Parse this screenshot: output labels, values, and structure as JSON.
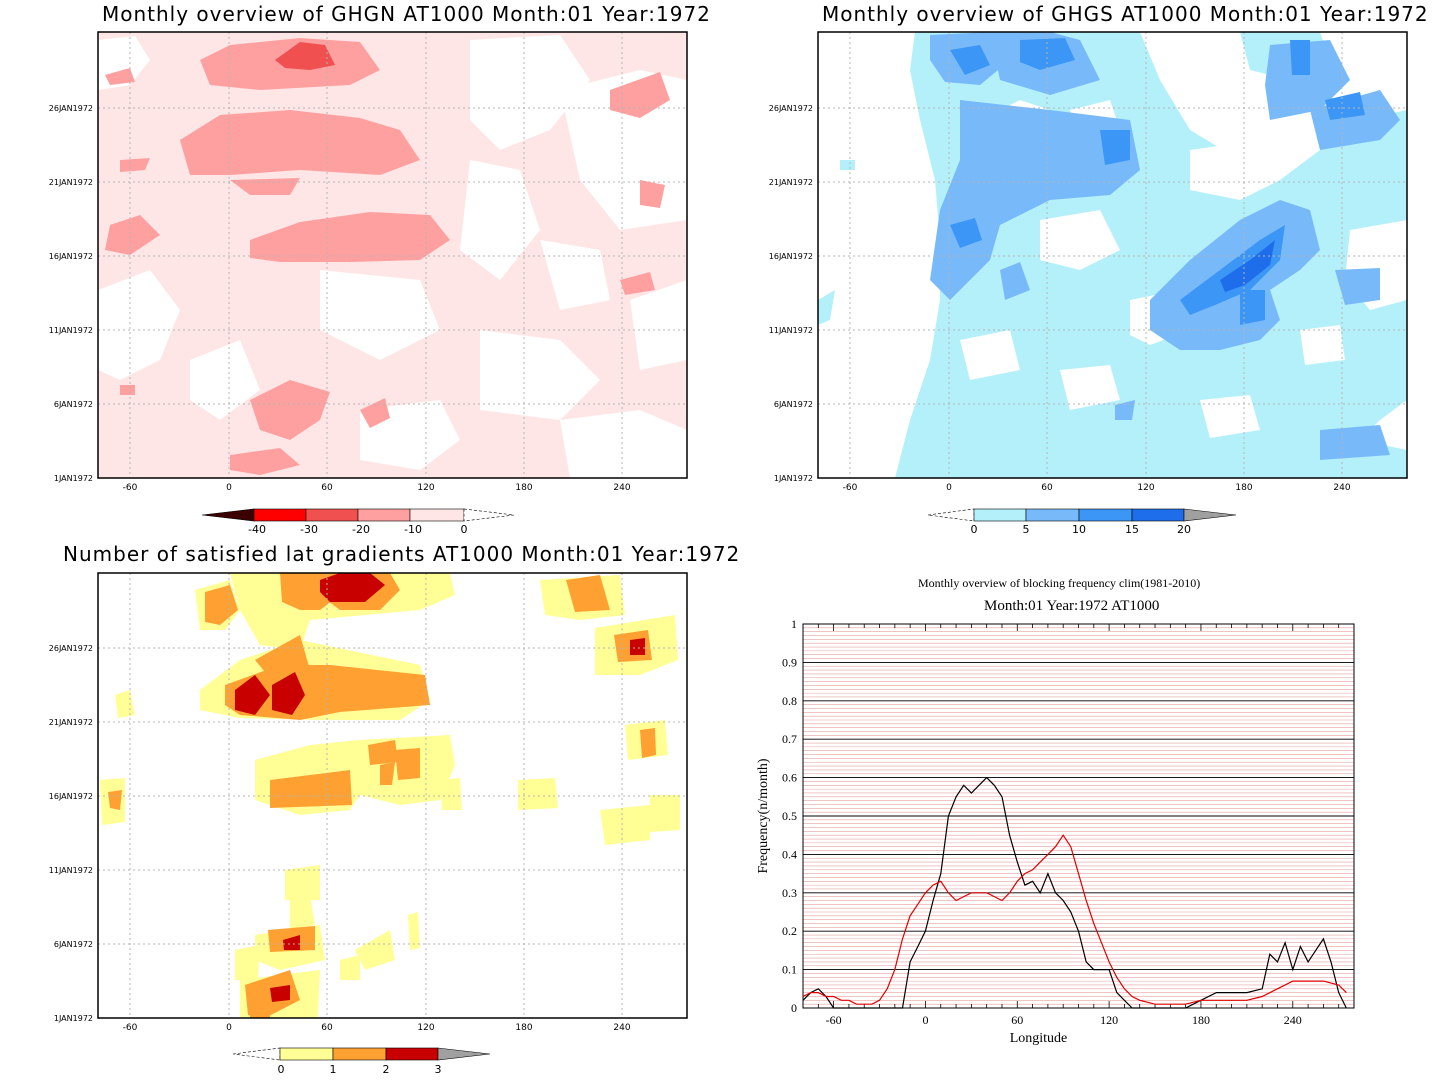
{
  "panels": {
    "ghgn": {
      "title": "Monthly overview of GHGN AT1000 Month:01 Year:1972",
      "colorbar_labels": [
        "-40",
        "-30",
        "-20",
        "-10",
        "0"
      ],
      "colors": [
        "#3c0000",
        "#ff0000",
        "#f05050",
        "#ffa0a0",
        "#ffe6e6",
        "#ffffff"
      ]
    },
    "ghgs": {
      "title": "Monthly overview of GHGS AT1000 Month:01 Year:1972",
      "colorbar_labels": [
        "0",
        "5",
        "10",
        "15",
        "20"
      ],
      "colors": [
        "#ffffff",
        "#b4f0fa",
        "#78b9fa",
        "#3c96f5",
        "#1e6eeb",
        "#a0a0a0"
      ]
    },
    "gradients": {
      "title": "Number of satisfied lat gradients AT1000 Month:01 Year:1972",
      "colorbar_labels": [
        "0",
        "1",
        "2",
        "3"
      ],
      "colors": [
        "#ffffff",
        "#ffff96",
        "#ffa032",
        "#c80000",
        "#a0a0a0"
      ]
    },
    "blocking": {
      "title": "Monthly overview of blocking frequency clim(1981-2010)",
      "subtitle": "Month:01 Year:1972  AT1000"
    }
  },
  "map_axes": {
    "x_ticks": [
      "-60",
      "0",
      "60",
      "120",
      "180",
      "240"
    ],
    "y_ticks": [
      "1JAN1972",
      "6JAN1972",
      "11JAN1972",
      "16JAN1972",
      "21JAN1972",
      "26JAN1972"
    ]
  },
  "chart_data": [
    {
      "type": "heatmap",
      "title": "Monthly overview of GHGN AT1000 Month:01 Year:1972",
      "x": "longitude",
      "y": "date",
      "xlim": [
        -80,
        280
      ],
      "ylim": [
        "1JAN1972",
        "31JAN1972"
      ],
      "contour_levels": [
        -40,
        -30,
        -20,
        -10,
        0
      ]
    },
    {
      "type": "heatmap",
      "title": "Monthly overview of GHGS AT1000 Month:01 Year:1972",
      "x": "longitude",
      "y": "date",
      "xlim": [
        -80,
        280
      ],
      "ylim": [
        "1JAN1972",
        "31JAN1972"
      ],
      "contour_levels": [
        0,
        5,
        10,
        15,
        20
      ]
    },
    {
      "type": "heatmap",
      "title": "Number of satisfied lat gradients AT1000 Month:01 Year:1972",
      "x": "longitude",
      "y": "date",
      "xlim": [
        -80,
        280
      ],
      "ylim": [
        "1JAN1972",
        "31JAN1972"
      ],
      "contour_levels": [
        0,
        1,
        2,
        3
      ]
    },
    {
      "type": "line",
      "title": "Monthly overview of blocking frequency clim(1981-2010)",
      "subtitle": "Month:01 Year:1972  AT1000",
      "xlabel": "Longitude",
      "ylabel": "Frequency(n/month)",
      "xlim": [
        -80,
        280
      ],
      "ylim": [
        0,
        1
      ],
      "x_ticks": [
        "-60",
        "0",
        "60",
        "120",
        "180",
        "240"
      ],
      "y_ticks": [
        "0",
        "0.1",
        "0.2",
        "0.3",
        "0.4",
        "0.5",
        "0.6",
        "0.7",
        "0.8",
        "0.9",
        "1"
      ],
      "grid": true,
      "series": [
        {
          "color": "#000000",
          "x": [
            -80,
            -75,
            -70,
            -65,
            -60,
            -55,
            -50,
            -45,
            -40,
            -35,
            -30,
            -25,
            -20,
            -15,
            -10,
            -5,
            0,
            5,
            10,
            15,
            20,
            25,
            30,
            35,
            40,
            45,
            50,
            55,
            60,
            65,
            70,
            75,
            80,
            85,
            90,
            95,
            100,
            105,
            110,
            115,
            120,
            125,
            130,
            135,
            140,
            150,
            160,
            170,
            180,
            190,
            200,
            210,
            220,
            225,
            230,
            235,
            240,
            245,
            250,
            255,
            260,
            265,
            270,
            275
          ],
          "values": [
            0.02,
            0.04,
            0.05,
            0.03,
            0.0,
            0.0,
            0.0,
            0.0,
            0.0,
            0.0,
            0.0,
            0.0,
            0.0,
            0.0,
            0.12,
            0.16,
            0.2,
            0.28,
            0.35,
            0.5,
            0.55,
            0.58,
            0.56,
            0.58,
            0.6,
            0.58,
            0.55,
            0.45,
            0.38,
            0.32,
            0.33,
            0.3,
            0.35,
            0.3,
            0.28,
            0.25,
            0.2,
            0.12,
            0.1,
            0.1,
            0.1,
            0.04,
            0.02,
            0.0,
            0.0,
            0.0,
            0.0,
            0.0,
            0.02,
            0.04,
            0.04,
            0.04,
            0.05,
            0.14,
            0.12,
            0.17,
            0.1,
            0.16,
            0.12,
            0.15,
            0.18,
            0.12,
            0.04,
            0.0
          ]
        },
        {
          "color": "#e00000",
          "x": [
            -80,
            -75,
            -70,
            -65,
            -60,
            -55,
            -50,
            -45,
            -40,
            -35,
            -30,
            -25,
            -20,
            -15,
            -10,
            -5,
            0,
            5,
            10,
            15,
            20,
            25,
            30,
            35,
            40,
            45,
            50,
            55,
            60,
            65,
            70,
            75,
            80,
            85,
            90,
            95,
            100,
            105,
            110,
            115,
            120,
            125,
            130,
            135,
            140,
            150,
            160,
            170,
            180,
            190,
            200,
            210,
            220,
            230,
            240,
            250,
            260,
            270,
            275
          ],
          "values": [
            0.03,
            0.04,
            0.04,
            0.03,
            0.03,
            0.02,
            0.02,
            0.01,
            0.01,
            0.01,
            0.02,
            0.05,
            0.1,
            0.18,
            0.24,
            0.27,
            0.3,
            0.32,
            0.33,
            0.3,
            0.28,
            0.29,
            0.3,
            0.3,
            0.3,
            0.29,
            0.28,
            0.3,
            0.33,
            0.35,
            0.36,
            0.38,
            0.4,
            0.42,
            0.45,
            0.42,
            0.35,
            0.28,
            0.22,
            0.17,
            0.12,
            0.08,
            0.05,
            0.03,
            0.02,
            0.01,
            0.01,
            0.01,
            0.02,
            0.02,
            0.02,
            0.02,
            0.03,
            0.05,
            0.07,
            0.07,
            0.07,
            0.06,
            0.04
          ]
        }
      ]
    }
  ]
}
